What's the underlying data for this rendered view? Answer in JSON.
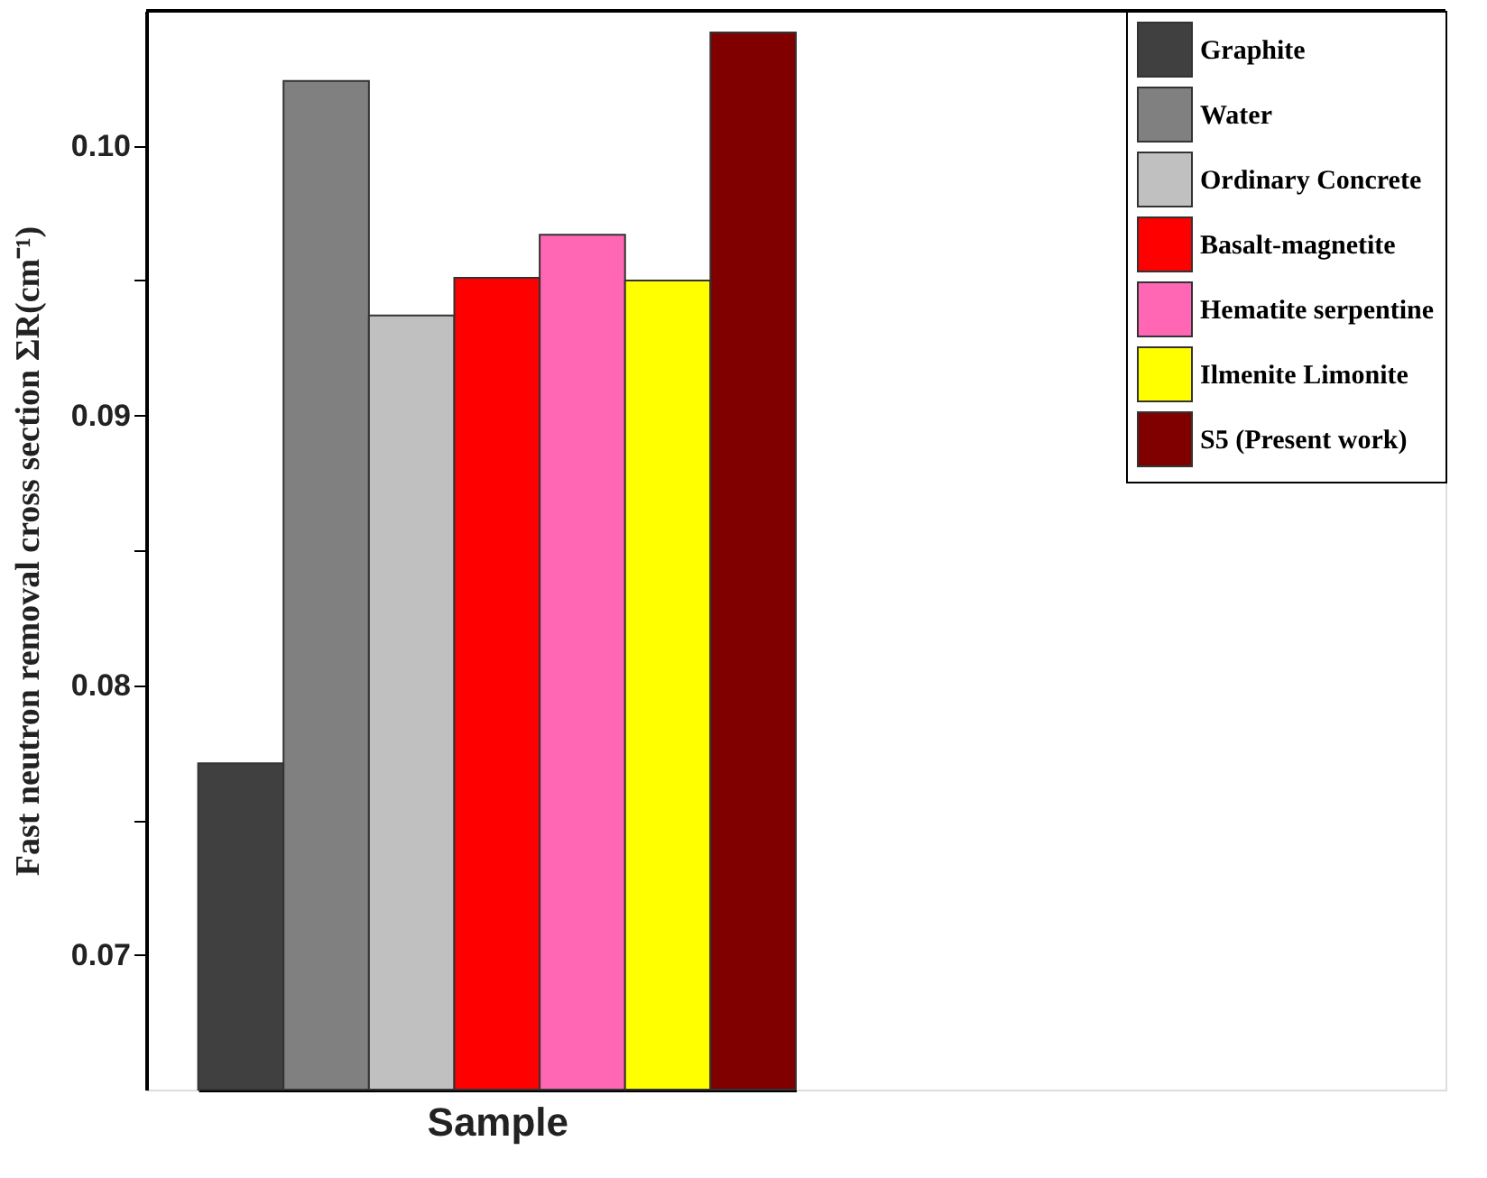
{
  "chart_data": {
    "type": "bar",
    "xlabel": "Sample",
    "ylabel": "Fast neutron removal cross section ΣR(cm⁻¹)",
    "categories": [
      null
    ],
    "series": [
      {
        "name": "Graphite",
        "color": "#404040",
        "values": [
          0.0771
        ]
      },
      {
        "name": "Water",
        "color": "#808080",
        "values": [
          0.1024
        ]
      },
      {
        "name": "Ordinary Concrete",
        "color": "#c0c0c0",
        "values": [
          0.0937
        ]
      },
      {
        "name": "Basalt-magnetite",
        "color": "#ff0000",
        "values": [
          0.0951
        ]
      },
      {
        "name": "Hematite serpentine",
        "color": "#ff66b3",
        "values": [
          0.0967
        ]
      },
      {
        "name": "Ilmenite Limonite",
        "color": "#ffff00",
        "values": [
          0.095
        ]
      },
      {
        "name": "S5 (Present work)",
        "color": "#800000",
        "values": [
          0.1042
        ]
      }
    ],
    "ylim": [
      0.065,
      0.105
    ],
    "yticks": [
      0.07,
      {
        "value": 0.075,
        "label": null
      },
      0.08,
      {
        "value": 0.085,
        "label": null
      },
      0.09,
      {
        "value": 0.095,
        "label": null
      },
      {
        "value": 0.1,
        "label": "0.10"
      }
    ],
    "grid": false,
    "legend": "top right",
    "tick_labels": "y"
  }
}
